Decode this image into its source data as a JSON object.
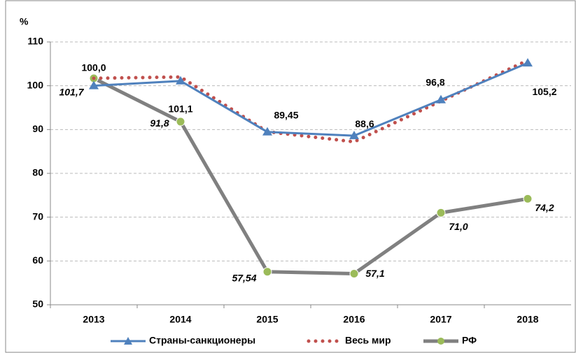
{
  "chart_data": {
    "type": "line",
    "ylabel": "%",
    "categories": [
      "2013",
      "2014",
      "2015",
      "2016",
      "2017",
      "2018"
    ],
    "series": [
      {
        "name": "Страны-санкционеры",
        "color": "#4f81bd",
        "marker": "triangle",
        "style": "solid",
        "values": [
          100.0,
          101.1,
          89.45,
          88.6,
          96.8,
          105.2
        ],
        "value_labels": [
          "100,0",
          "101,1",
          "89,45",
          "88,6",
          "96,8",
          "105,2"
        ]
      },
      {
        "name": "Весь мир",
        "color": "#c0504d",
        "marker": "none",
        "style": "dotted",
        "values": [
          101.7,
          102.0,
          89.5,
          87.2,
          96.5,
          105.8
        ]
      },
      {
        "name": "РФ",
        "color": "#808080",
        "marker": "circle",
        "style": "solid",
        "values": [
          101.7,
          91.8,
          57.54,
          57.1,
          71.0,
          74.2
        ],
        "value_labels": [
          "101,7",
          "91,8",
          "57,54",
          "57,1",
          "71,0",
          "74,2"
        ]
      }
    ],
    "ylim": [
      50,
      110
    ],
    "yticks": [
      50,
      60,
      70,
      80,
      90,
      100,
      110
    ],
    "grid": true,
    "legend": "bottom"
  }
}
